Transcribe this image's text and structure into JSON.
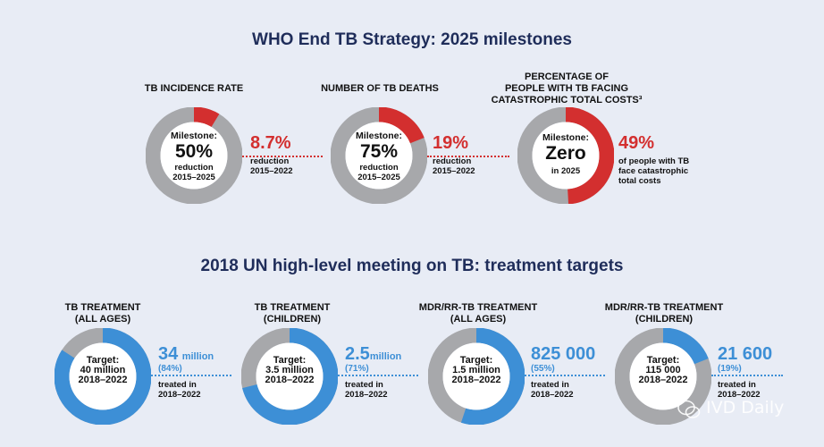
{
  "titles": {
    "top": "WHO End TB Strategy: 2025 milestones",
    "bottom": "2018 UN high-level meeting on TB: treatment targets"
  },
  "colors": {
    "grey": "#a7a8ab",
    "red": "#d32f2f",
    "blue": "#3d8fd6",
    "navy": "#1f2d5a"
  },
  "chart_data": [
    {
      "type": "pie",
      "title": "WHO End TB Strategy: 2025 milestones",
      "series": [
        {
          "name": "TB INCIDENCE RATE",
          "value_pct": 8.7,
          "milestone": "50%"
        },
        {
          "name": "NUMBER OF TB DEATHS",
          "value_pct": 19,
          "milestone": "75%"
        },
        {
          "name": "PERCENTAGE OF PEOPLE WITH TB FACING CATASTROPHIC TOTAL COSTS",
          "value_pct": 49,
          "milestone": "Zero"
        }
      ]
    },
    {
      "type": "pie",
      "title": "2018 UN high-level meeting on TB: treatment targets",
      "series": [
        {
          "name": "TB TREATMENT (ALL AGES)",
          "value_pct": 84,
          "treated": "34 million",
          "target": "40 million"
        },
        {
          "name": "TB TREATMENT (CHILDREN)",
          "value_pct": 71,
          "treated": "2.5 million",
          "target": "3.5 million"
        },
        {
          "name": "MDR/RR-TB TREATMENT (ALL AGES)",
          "value_pct": 55,
          "treated": "825 000",
          "target": "1.5 million"
        },
        {
          "name": "MDR/RR-TB TREATMENT (CHILDREN)",
          "value_pct": 19,
          "treated": "21 600",
          "target": "115 000"
        }
      ]
    }
  ],
  "milestones": [
    {
      "label_l1": "",
      "label_l2": "",
      "label_l3": "TB INCIDENCE RATE",
      "pct": 8.7,
      "inner_l1": "Milestone:",
      "inner_big": "50%",
      "inner_l3": "reduction",
      "inner_l4": "2015–2025",
      "stat_big": "8.7%",
      "stat_l1": "reduction",
      "stat_l2": "2015–2022",
      "stat_l3": ""
    },
    {
      "label_l1": "",
      "label_l2": "",
      "label_l3": "NUMBER OF TB DEATHS",
      "pct": 19,
      "inner_l1": "Milestone:",
      "inner_big": "75%",
      "inner_l3": "reduction",
      "inner_l4": "2015–2025",
      "stat_big": "19%",
      "stat_l1": "reduction",
      "stat_l2": "2015–2022",
      "stat_l3": ""
    },
    {
      "label_l1": "PERCENTAGE OF",
      "label_l2": "PEOPLE WITH TB FACING",
      "label_l3": "CATASTROPHIC TOTAL COSTS³",
      "pct": 49,
      "inner_l1": "Milestone:",
      "inner_big": "Zero",
      "inner_l3": "in 2025",
      "inner_l4": "",
      "stat_big": "49%",
      "stat_l1": "of people with TB",
      "stat_l2": "face catastrophic",
      "stat_l3": "total costs"
    }
  ],
  "targets": [
    {
      "label_l1": "TB TREATMENT",
      "label_l2": "(ALL AGES)",
      "pct": 84,
      "inner_l1": "Target:",
      "inner_l2": "40 million",
      "inner_l3": "2018–2022",
      "stat_big": "34",
      "stat_unit": "million",
      "stat_pct": "(84%)",
      "stat_l1": "treated in",
      "stat_l2": "2018–2022"
    },
    {
      "label_l1": "TB TREATMENT",
      "label_l2": "(CHILDREN)",
      "pct": 71,
      "inner_l1": "Target:",
      "inner_l2": "3.5 million",
      "inner_l3": "2018–2022",
      "stat_big": "2.5",
      "stat_unit": "million",
      "stat_pct": "(71%)",
      "stat_l1": "treated in",
      "stat_l2": "2018–2022"
    },
    {
      "label_l1": "MDR/RR-TB TREATMENT",
      "label_l2": "(ALL AGES)",
      "pct": 55,
      "inner_l1": "Target:",
      "inner_l2": "1.5 million",
      "inner_l3": "2018–2022",
      "stat_big": "825 000",
      "stat_unit": "",
      "stat_pct": "(55%)",
      "stat_l1": "treated in",
      "stat_l2": "2018–2022"
    },
    {
      "label_l1": "MDR/RR-TB TREATMENT",
      "label_l2": "(CHILDREN)",
      "pct": 19,
      "inner_l1": "Target:",
      "inner_l2": "115 000",
      "inner_l3": "2018–2022",
      "stat_big": "21 600",
      "stat_unit": "",
      "stat_pct": "(19%)",
      "stat_l1": "treated in",
      "stat_l2": "2018–2022"
    }
  ],
  "watermark": "IVD Daily"
}
